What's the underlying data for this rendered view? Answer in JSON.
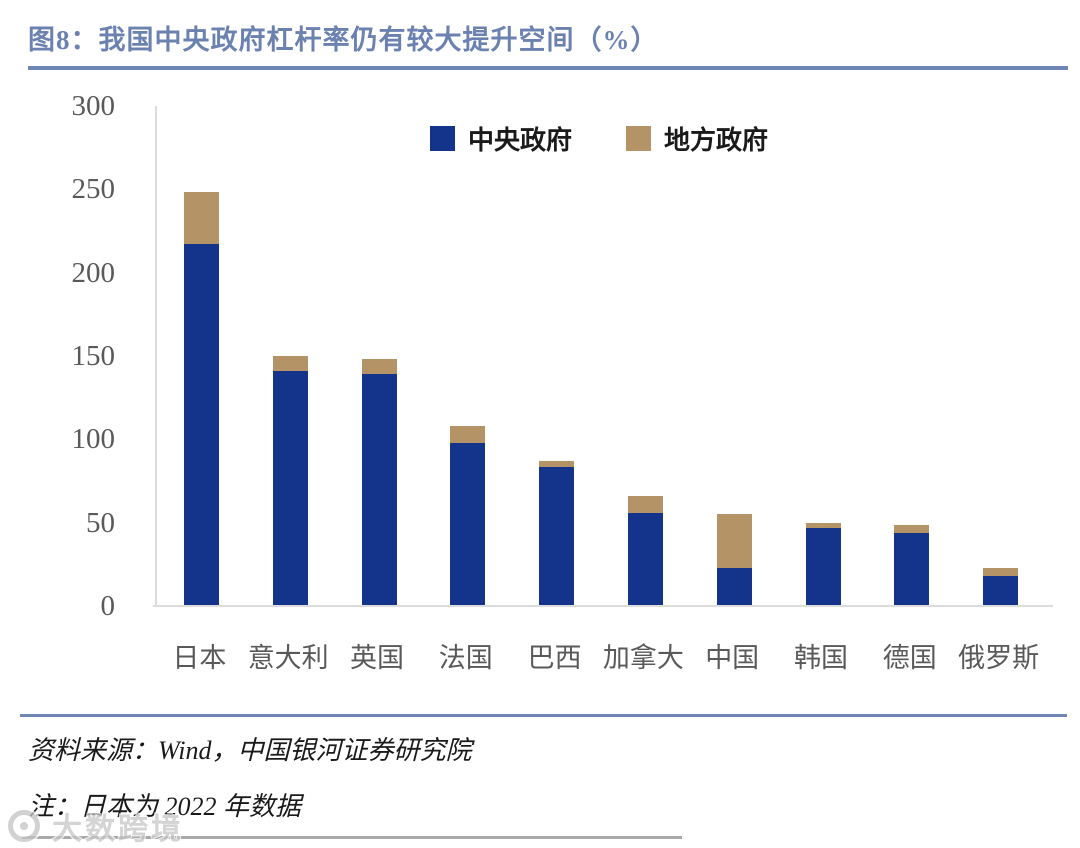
{
  "page": {
    "title": "图8：我国中央政府杠杆率仍有较大提升空间（%）"
  },
  "chart_data": {
    "type": "bar",
    "stacked": true,
    "title": "图8：我国中央政府杠杆率仍有较大提升空间（%）",
    "categories": [
      "日本",
      "意大利",
      "英国",
      "法国",
      "巴西",
      "加拿大",
      "中国",
      "韩国",
      "德国",
      "俄罗斯"
    ],
    "series": [
      {
        "name": "中央政府",
        "color": "#14338b",
        "values": [
          217,
          141,
          139,
          98,
          83.5,
          56,
          23,
          47,
          44,
          18
        ]
      },
      {
        "name": "地方政府",
        "color": "#b49467",
        "values": [
          31.5,
          9,
          9,
          10,
          3.5,
          10,
          32,
          3,
          4.5,
          5
        ]
      }
    ],
    "totals": [
      248.5,
      150,
      148,
      108,
      87,
      66,
      55,
      50,
      48.5,
      23
    ],
    "xlabel": "",
    "ylabel": "",
    "ylim": [
      0,
      300
    ],
    "yticks": [
      0,
      50,
      100,
      150,
      200,
      250,
      300
    ],
    "grid": false,
    "legend_position": "top-center"
  },
  "footer": {
    "source": "资料来源：Wind，中国银河证券研究院",
    "note": "注：日本为 2022 年数据"
  },
  "watermark": {
    "text": "大数跨境",
    "logo": "circle-logo-icon"
  },
  "colors": {
    "title_text": "#6b82b1",
    "divider": "#6f86b4",
    "central_gov_bar": "#14338b",
    "local_gov_bar": "#b49467",
    "axis_text": "#595959",
    "axis_line": "#dcdcdc",
    "footer_text": "#1a1a1a",
    "watermark_text": "#c6c6c6"
  }
}
